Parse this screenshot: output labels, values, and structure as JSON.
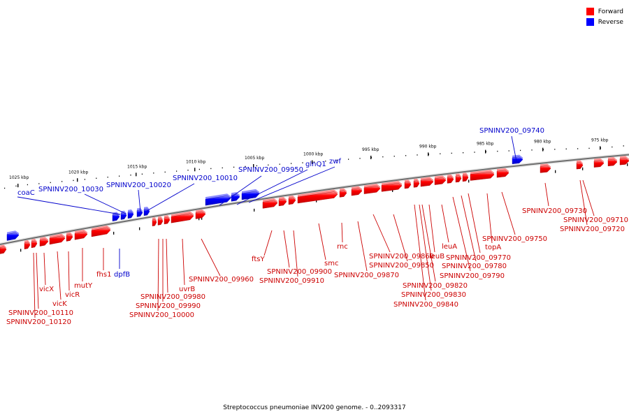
{
  "legend": {
    "forward_label": "Forward",
    "reverse_label": "Reverse",
    "forward_color": "#ff0000",
    "reverse_color": "#0000ff"
  },
  "caption": "Streptococcus pneumoniae INV200 genome. - 0..2093317",
  "ruler": [
    "975 kbp",
    "980 kbp",
    "985 kbp",
    "990 kbp",
    "995 kbp",
    "1000 kbp",
    "1005 kbp",
    "1010 kbp",
    "1015 kbp",
    "1020 kbp",
    "1025 kbp"
  ],
  "reverse_genes": [
    "SPNINV200_09740",
    "zwf",
    "glnQ1",
    "SPNINV200_09950",
    "SPNINV200_10010",
    "SPNINV200_10020",
    "SPNINV200_10030",
    "coaC",
    "dpfB"
  ],
  "forward_genes": [
    "SPNINV200_09710",
    "SPNINV200_09720",
    "SPNINV200_09730",
    "SPNINV200_09750",
    "topA",
    "SPNINV200_09770",
    "SPNINV200_09780",
    "SPNINV200_09790",
    "leuA",
    "leuB",
    "SPNINV200_09820",
    "SPNINV200_09830",
    "SPNINV200_09840",
    "SPNINV200_09850",
    "SPNINV200_09860",
    "SPNINV200_09870",
    "rnc",
    "smc",
    "SPNINV200_09900",
    "SPNINV200_09910",
    "ftsY",
    "SPNINV200_09960",
    "uvrB",
    "SPNINV200_09980",
    "SPNINV200_09990",
    "SPNINV200_10000",
    "fhs1",
    "mutY",
    "vicR",
    "vicK",
    "vicX",
    "SPNINV200_10110",
    "SPNINV200_10120"
  ]
}
